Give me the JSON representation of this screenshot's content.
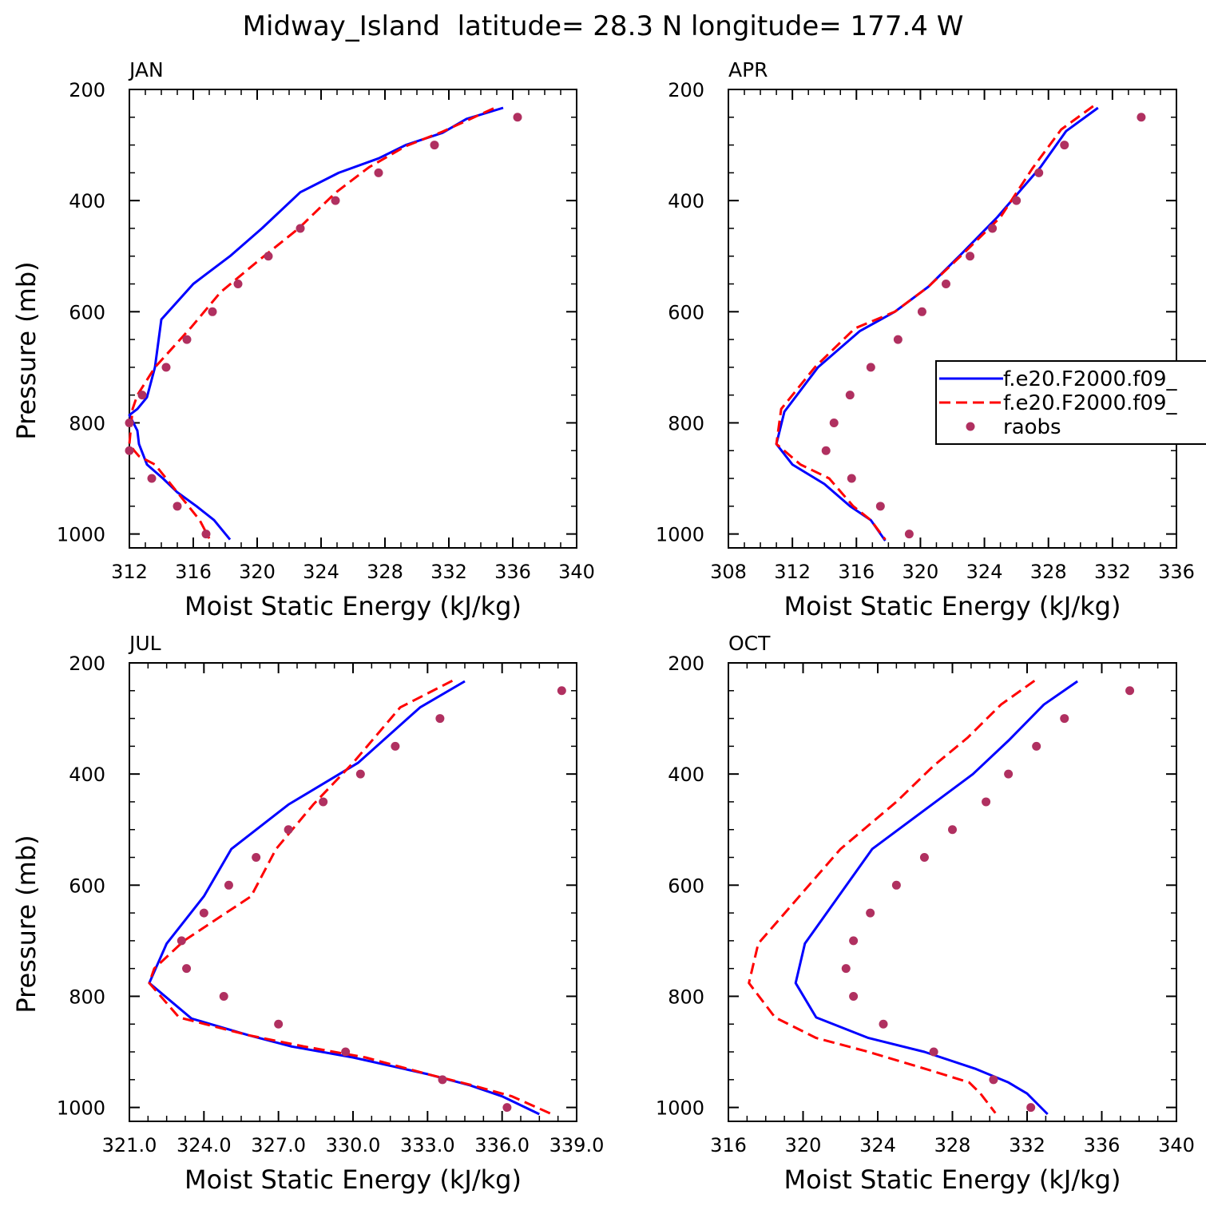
{
  "figure": {
    "suptitle": "Midway_Island  latitude= 28.3 N longitude= 177.4 W"
  },
  "legend": {
    "entries": [
      {
        "label": "f.e20.F2000.f09_",
        "style": "solid",
        "color": "#0000ff"
      },
      {
        "label": "f.e20.F2000.f09_",
        "style": "dashed",
        "color": "#ff0000"
      },
      {
        "label": "raobs",
        "style": "dot",
        "color": "#b03060"
      }
    ]
  },
  "chart_data": [
    {
      "type": "line",
      "title": "JAN",
      "xlabel": "Moist Static Energy (kJ/kg)",
      "ylabel": "Pressure (mb)",
      "xlim": [
        312,
        340
      ],
      "xticks": [
        312,
        316,
        320,
        324,
        328,
        332,
        336,
        340
      ],
      "xtick_labels": [
        "312",
        "316",
        "320",
        "324",
        "328",
        "332",
        "336",
        "340"
      ],
      "ylim": [
        1025,
        200
      ],
      "yticks": [
        200,
        400,
        600,
        800,
        1000
      ],
      "ytick_labels": [
        "200",
        "400",
        "600",
        "800",
        "1000"
      ],
      "series": [
        {
          "style": "solid",
          "color": "#0000ff",
          "x": [
            335.4,
            333.1,
            331.6,
            329.3,
            327.6,
            325.1,
            322.7,
            320.3,
            318.3,
            316.0,
            314.0,
            313.6,
            313.1,
            312.5,
            312.0,
            312.5,
            312.6,
            313.1,
            314.1,
            315.0,
            316.2,
            317.3,
            318.3
          ],
          "y": [
            233,
            253,
            278,
            300,
            324,
            350,
            385,
            450,
            500,
            550,
            614,
            700,
            754,
            775,
            786,
            814,
            838,
            875,
            900,
            925,
            950,
            975,
            1010
          ]
        },
        {
          "style": "dashed",
          "color": "#ff0000",
          "x": [
            334.8,
            331.6,
            329.3,
            327.0,
            324.9,
            322.6,
            320.0,
            317.7,
            315.9,
            313.6,
            312.5,
            312.2,
            312.0,
            312.3,
            312.6,
            313.6,
            314.3,
            315.0,
            315.7,
            316.4,
            317.0
          ],
          "y": [
            234,
            276,
            302,
            340,
            386,
            450,
            510,
            565,
            627,
            700,
            750,
            775,
            838,
            850,
            860,
            875,
            900,
            925,
            950,
            975,
            1008
          ]
        },
        {
          "style": "dot",
          "color": "#b03060",
          "x": [
            336.3,
            331.1,
            327.6,
            324.9,
            322.7,
            320.7,
            318.8,
            317.2,
            315.6,
            314.3,
            312.8,
            312.0,
            312.0,
            313.4,
            315.0,
            316.8
          ],
          "y": [
            250,
            300,
            350,
            400,
            450,
            500,
            550,
            600,
            650,
            700,
            750,
            800,
            850,
            900,
            950,
            1000
          ]
        }
      ]
    },
    {
      "type": "line",
      "title": "APR",
      "xlabel": "Moist Static Energy (kJ/kg)",
      "ylabel": "",
      "xlim": [
        308,
        336
      ],
      "xticks": [
        308,
        312,
        316,
        320,
        324,
        328,
        332,
        336
      ],
      "xtick_labels": [
        "308",
        "312",
        "316",
        "320",
        "324",
        "328",
        "332",
        "336"
      ],
      "ylim": [
        1025,
        200
      ],
      "yticks": [
        200,
        400,
        600,
        800,
        1000
      ],
      "ytick_labels": [
        "200",
        "400",
        "600",
        "800",
        "1000"
      ],
      "series": [
        {
          "style": "solid",
          "color": "#0000ff",
          "x": [
            331.1,
            329.1,
            327.5,
            324.8,
            322.6,
            320.5,
            318.4,
            316.2,
            313.6,
            311.5,
            311.0,
            312.0,
            314.0,
            315.6,
            316.9,
            317.8
          ],
          "y": [
            233,
            275,
            340,
            430,
            495,
            555,
            600,
            635,
            700,
            780,
            838,
            875,
            910,
            950,
            975,
            1012
          ]
        },
        {
          "style": "dashed",
          "color": "#ff0000",
          "x": [
            330.8,
            328.8,
            327.0,
            325.0,
            322.8,
            320.5,
            318.4,
            315.9,
            313.4,
            311.3,
            311.0,
            312.5,
            314.3,
            315.8,
            316.9,
            317.8
          ],
          "y": [
            230,
            272,
            342,
            430,
            492,
            555,
            600,
            630,
            700,
            775,
            838,
            875,
            900,
            950,
            975,
            1010
          ]
        },
        {
          "style": "dot",
          "color": "#b03060",
          "x": [
            333.8,
            329.0,
            327.4,
            326.0,
            324.5,
            323.1,
            321.6,
            320.1,
            318.6,
            316.9,
            315.6,
            314.6,
            314.1,
            315.7,
            317.5,
            319.3
          ],
          "y": [
            250,
            300,
            350,
            400,
            450,
            500,
            550,
            600,
            650,
            700,
            750,
            800,
            850,
            900,
            950,
            1000
          ]
        }
      ]
    },
    {
      "type": "line",
      "title": "JUL",
      "xlabel": "Moist Static Energy (kJ/kg)",
      "ylabel": "Pressure (mb)",
      "xlim": [
        321,
        339
      ],
      "xticks": [
        321,
        324,
        327,
        330,
        333,
        336,
        339
      ],
      "xtick_labels": [
        "321.0",
        "324.0",
        "327.0",
        "330.0",
        "333.0",
        "336.0",
        "339.0"
      ],
      "ylim": [
        1025,
        200
      ],
      "yticks": [
        200,
        400,
        600,
        800,
        1000
      ],
      "ytick_labels": [
        "200",
        "400",
        "600",
        "800",
        "1000"
      ],
      "series": [
        {
          "style": "solid",
          "color": "#0000ff",
          "x": [
            334.5,
            332.7,
            330.2,
            327.4,
            325.1,
            324.0,
            322.5,
            321.8,
            323.5,
            325.8,
            327.5,
            330.0,
            333.0,
            334.7,
            336.0,
            337.5
          ],
          "y": [
            233,
            280,
            380,
            455,
            535,
            620,
            705,
            776,
            840,
            870,
            890,
            910,
            940,
            960,
            980,
            1012
          ]
        },
        {
          "style": "dashed",
          "color": "#ff0000",
          "x": [
            334.0,
            331.9,
            330.0,
            328.4,
            326.9,
            325.9,
            323.2,
            322.0,
            321.8,
            323.0,
            325.8,
            328.0,
            330.5,
            333.0,
            334.8,
            336.4,
            338.0
          ],
          "y": [
            232,
            280,
            380,
            455,
            535,
            620,
            700,
            750,
            776,
            838,
            870,
            890,
            910,
            940,
            960,
            980,
            1012
          ]
        },
        {
          "style": "dot",
          "color": "#b03060",
          "x": [
            338.4,
            333.5,
            331.7,
            330.3,
            328.8,
            327.4,
            326.1,
            325.0,
            324.0,
            323.1,
            323.3,
            324.8,
            327.0,
            329.7,
            333.6,
            336.2
          ],
          "y": [
            250,
            300,
            350,
            400,
            450,
            500,
            550,
            600,
            650,
            700,
            750,
            800,
            850,
            900,
            950,
            1000
          ]
        }
      ]
    },
    {
      "type": "line",
      "title": "OCT",
      "xlabel": "Moist Static Energy (kJ/kg)",
      "ylabel": "",
      "xlim": [
        316,
        340
      ],
      "xticks": [
        316,
        320,
        324,
        328,
        332,
        336,
        340
      ],
      "xtick_labels": [
        "316",
        "320",
        "324",
        "328",
        "332",
        "336",
        "340"
      ],
      "ylim": [
        1025,
        200
      ],
      "yticks": [
        200,
        400,
        600,
        800,
        1000
      ],
      "ytick_labels": [
        "200",
        "400",
        "600",
        "800",
        "1000"
      ],
      "series": [
        {
          "style": "solid",
          "color": "#0000ff",
          "x": [
            334.7,
            332.9,
            331.0,
            329.1,
            327.1,
            323.7,
            320.1,
            319.6,
            320.7,
            323.5,
            326.5,
            329.2,
            331.0,
            332.0,
            333.1
          ],
          "y": [
            233,
            275,
            340,
            400,
            450,
            535,
            705,
            776,
            838,
            875,
            900,
            930,
            955,
            975,
            1012
          ]
        },
        {
          "style": "dashed",
          "color": "#ff0000",
          "x": [
            332.4,
            330.6,
            328.8,
            327.0,
            325.0,
            322.0,
            317.6,
            317.1,
            318.5,
            320.7,
            323.5,
            326.5,
            328.9,
            329.5,
            330.3
          ],
          "y": [
            232,
            275,
            335,
            385,
            450,
            535,
            705,
            776,
            838,
            875,
            900,
            930,
            955,
            975,
            1010
          ]
        },
        {
          "style": "dot",
          "color": "#b03060",
          "x": [
            337.5,
            334.0,
            332.5,
            331.0,
            329.8,
            328.0,
            326.5,
            325.0,
            323.6,
            322.7,
            322.3,
            322.7,
            324.3,
            327.0,
            330.2,
            332.2
          ],
          "y": [
            250,
            300,
            350,
            400,
            450,
            500,
            550,
            600,
            650,
            700,
            750,
            800,
            850,
            900,
            950,
            1000
          ]
        }
      ]
    }
  ]
}
